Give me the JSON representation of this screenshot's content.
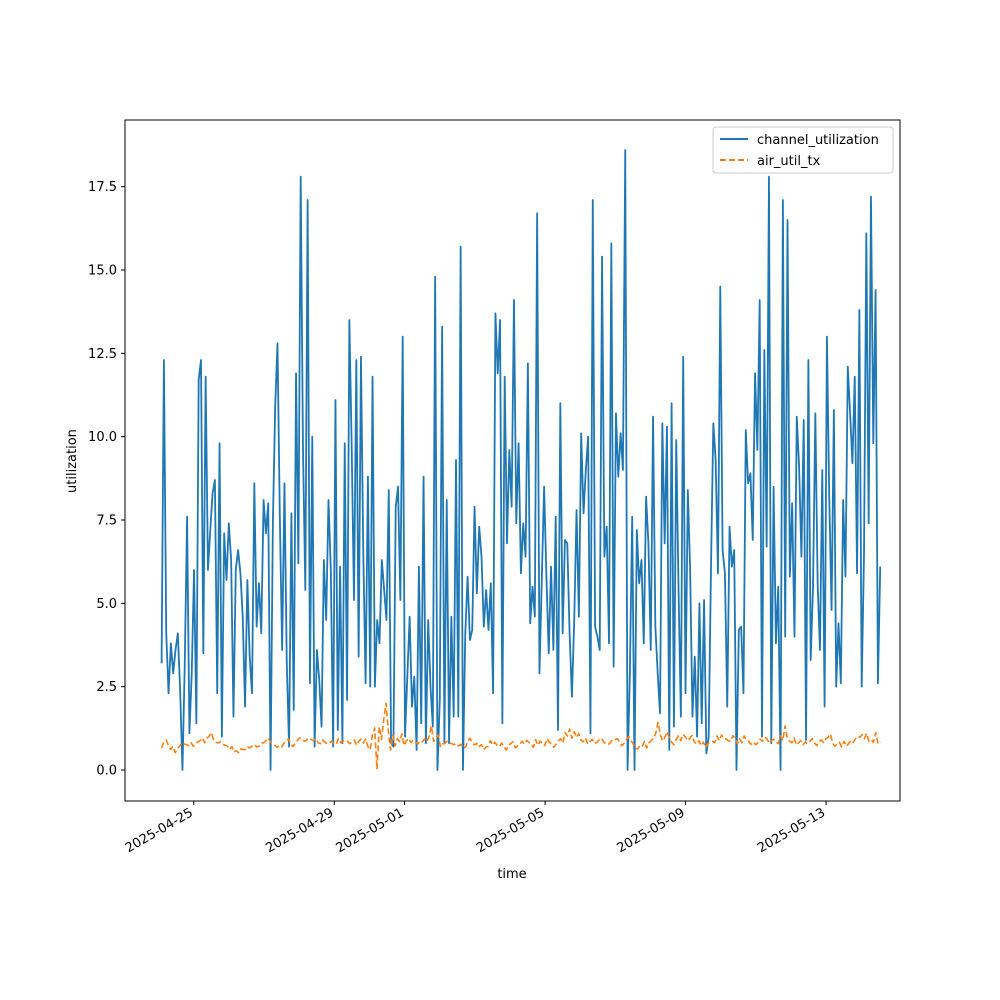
{
  "chart_data": {
    "type": "line",
    "title": "",
    "xlabel": "time",
    "ylabel": "utilization",
    "x_tick_labels": [
      "2025-04-25",
      "2025-04-29",
      "2025-05-01",
      "2025-05-05",
      "2025-05-09",
      "2025-05-13"
    ],
    "x_tick_dates": [
      "2025-04-25",
      "2025-04-29",
      "2025-05-01",
      "2025-05-05",
      "2025-05-09",
      "2025-05-13"
    ],
    "xlim": [
      "2025-04-23 01:00",
      "2025-05-15 02:30"
    ],
    "y_ticks": [
      0.0,
      2.5,
      5.0,
      7.5,
      10.0,
      12.5,
      15.0,
      17.5
    ],
    "y_tick_labels": [
      "0.0",
      "2.5",
      "5.0",
      "7.5",
      "10.0",
      "12.5",
      "15.0",
      "17.5"
    ],
    "ylim": [
      -0.93,
      19.5
    ],
    "grid": false,
    "legend_position": "top-right",
    "series": [
      {
        "name": "channel_utilization",
        "color": "#1f77b4",
        "style": "solid",
        "x_start": "2025-04-24 02:00",
        "x_end": "2025-05-14 13:00",
        "values": [
          3.2,
          12.3,
          4.1,
          2.3,
          3.8,
          2.9,
          3.6,
          4.1,
          2.4,
          0.0,
          3.2,
          7.6,
          1.1,
          2.9,
          6.0,
          1.4,
          11.7,
          12.3,
          3.5,
          11.8,
          6.0,
          7.2,
          8.3,
          8.7,
          2.3,
          9.8,
          1.0,
          7.1,
          5.7,
          7.4,
          6.3,
          1.6,
          6.0,
          6.6,
          5.9,
          4.6,
          1.9,
          5.7,
          3.4,
          2.3,
          8.6,
          4.3,
          5.6,
          4.1,
          8.1,
          7.1,
          8.0,
          0.0,
          7.4,
          10.9,
          12.8,
          7.6,
          3.6,
          8.6,
          3.2,
          0.7,
          7.7,
          1.8,
          11.9,
          6.2,
          17.8,
          9.6,
          5.4,
          17.1,
          2.6,
          10.0,
          0.7,
          3.6,
          2.7,
          1.3,
          6.3,
          4.5,
          8.1,
          6.0,
          0.7,
          11.1,
          1.2,
          6.1,
          0.8,
          9.8,
          2.1,
          13.5,
          9.7,
          5.1,
          12.3,
          3.4,
          12.4,
          6.5,
          2.6,
          8.8,
          2.5,
          11.8,
          2.5,
          4.5,
          3.8,
          6.3,
          5.4,
          4.5,
          8.4,
          0.8,
          0.7,
          7.9,
          8.5,
          5.1,
          13.0,
          1.0,
          2.8,
          4.6,
          1.9,
          2.8,
          0.6,
          6.1,
          1.4,
          8.8,
          0.8,
          4.5,
          2.5,
          1.3,
          14.8,
          0.0,
          2.1,
          13.3,
          0.8,
          8.1,
          0.8,
          4.6,
          1.6,
          9.3,
          1.6,
          15.7,
          0.0,
          4.1,
          5.8,
          3.9,
          4.2,
          7.9,
          5.3,
          7.3,
          6.4,
          4.3,
          5.4,
          4.2,
          5.6,
          2.3,
          13.7,
          11.9,
          13.5,
          1.4,
          11.8,
          6.8,
          9.6,
          7.9,
          14.1,
          7.4,
          9.8,
          5.9,
          7.4,
          6.4,
          12.2,
          4.4,
          5.5,
          4.6,
          16.7,
          2.9,
          5.7,
          8.5,
          5.8,
          3.5,
          6.1,
          3.6,
          7.6,
          1.2,
          11.0,
          4.1,
          6.9,
          6.8,
          4.1,
          2.2,
          4.5,
          7.8,
          4.6,
          10.1,
          7.7,
          9.0,
          10.0,
          1.1,
          17.1,
          4.3,
          4.0,
          3.6,
          15.4,
          6.4,
          7.3,
          3.8,
          15.8,
          3.1,
          10.7,
          8.8,
          10.1,
          9.0,
          18.6,
          0.0,
          2.9,
          7.6,
          0.0,
          7.2,
          5.6,
          6.3,
          3.8,
          8.2,
          6.8,
          3.6,
          10.6,
          4.3,
          2.9,
          1.7,
          10.4,
          6.8,
          10.3,
          0.6,
          11.0,
          1.3,
          9.9,
          5.4,
          1.6,
          12.4,
          2.3,
          8.4,
          6.0,
          1.6,
          3.4,
          1.0,
          5.0,
          1.4,
          5.1,
          0.5,
          1.0,
          6.1,
          10.4,
          9.3,
          5.9,
          14.5,
          6.6,
          5.9,
          1.9,
          7.3,
          6.1,
          6.6,
          0.0,
          4.2,
          4.3,
          2.3,
          10.2,
          8.6,
          8.9,
          6.9,
          11.9,
          9.6,
          14.1,
          1.0,
          12.6,
          6.7,
          17.8,
          0.8,
          8.5,
          3.8,
          5.5,
          0.0,
          17.1,
          4.0,
          16.5,
          5.8,
          8.0,
          4.0,
          10.6,
          9.1,
          6.4,
          10.5,
          0.9,
          12.3,
          3.3,
          5.5,
          10.7,
          5.6,
          3.6,
          9.0,
          1.9,
          13.0,
          8.2,
          4.8,
          10.8,
          2.5,
          4.4,
          2.6,
          8.1,
          5.8,
          12.1,
          10.7,
          9.2,
          11.8,
          5.9,
          13.8,
          2.5,
          6.5,
          16.1,
          7.4,
          17.2,
          9.8,
          14.4,
          2.6,
          6.1
        ]
      },
      {
        "name": "air_util_tx",
        "color": "#ff7f0e",
        "style": "dashed",
        "x_start": "2025-04-24 02:00",
        "x_end": "2025-05-14 13:00",
        "values": [
          0.66,
          0.84,
          0.9,
          0.74,
          0.61,
          0.71,
          0.52,
          0.64,
          0.72,
          0.82,
          0.78,
          0.76,
          0.73,
          0.82,
          0.71,
          0.78,
          0.85,
          0.88,
          0.96,
          0.82,
          0.95,
          1.02,
          1.12,
          0.89,
          0.83,
          0.81,
          0.85,
          0.78,
          0.74,
          0.71,
          0.62,
          0.7,
          0.54,
          0.58,
          0.52,
          0.64,
          0.61,
          0.62,
          0.69,
          0.66,
          0.73,
          0.76,
          0.69,
          0.71,
          0.8,
          0.82,
          0.88,
          0.96,
          0.84,
          0.78,
          0.74,
          0.68,
          0.73,
          0.69,
          0.81,
          0.88,
          0.94,
          0.76,
          0.7,
          0.82,
          0.89,
          0.97,
          0.93,
          0.86,
          0.9,
          0.96,
          0.91,
          0.88,
          0.94,
          0.82,
          0.79,
          0.9,
          0.84,
          0.78,
          0.81,
          0.86,
          0.8,
          0.76,
          0.95,
          0.82,
          0.87,
          0.9,
          0.86,
          0.79,
          0.84,
          0.9,
          0.74,
          0.86,
          0.93,
          0.81,
          0.93,
          0.7,
          0.61,
          1.05,
          1.26,
          0.02,
          1.3,
          0.92,
          1.52,
          2.0,
          1.2,
          0.6,
          1.05,
          0.72,
          0.94,
          0.85,
          1.08,
          0.73,
          0.88,
          0.95,
          0.82,
          0.9,
          0.84,
          0.78,
          0.87,
          0.84,
          0.93,
          0.85,
          1.01,
          1.32,
          0.86,
          0.97,
          1.05,
          0.7,
          0.78,
          0.8,
          0.86,
          0.81,
          0.79,
          0.76,
          0.8,
          0.72,
          0.77,
          0.67,
          0.68,
          0.84,
          0.95,
          0.82,
          0.75,
          0.8,
          0.69,
          0.76,
          0.61,
          0.68,
          0.71,
          0.88,
          0.75,
          0.83,
          0.74,
          0.7,
          0.81,
          0.71,
          0.6,
          0.75,
          0.79,
          0.85,
          0.67,
          0.72,
          0.77,
          0.86,
          0.78,
          0.89,
          0.83,
          0.76,
          0.68,
          0.91,
          0.74,
          0.87,
          0.79,
          0.73,
          0.94,
          0.84,
          0.78,
          0.68,
          0.77,
          0.87,
          0.94,
          0.81,
          1.12,
          1.02,
          1.23,
          0.95,
          1.15,
          0.98,
          1.09,
          0.9,
          0.84,
          0.96,
          0.78,
          0.86,
          0.92,
          0.79,
          0.83,
          0.9,
          0.95,
          0.84,
          0.78,
          0.76,
          0.83,
          0.92,
          0.91,
          0.94,
          0.85,
          0.73,
          0.8,
          0.91,
          1.0,
          0.88,
          0.79,
          0.65,
          0.63,
          0.74,
          0.71,
          0.86,
          0.66,
          0.82,
          0.88,
          0.96,
          1.1,
          1.43,
          1.06,
          0.87,
          0.98,
          1.15,
          0.94,
          0.83,
          0.76,
          0.92,
          1.02,
          0.88,
          1.07,
          0.99,
          0.88,
          0.95,
          1.04,
          0.84,
          0.78,
          0.88,
          0.73,
          0.84,
          0.67,
          0.79,
          0.85,
          0.86,
          0.82,
          1.02,
          0.88,
          1.05,
          0.94,
          0.93,
          0.88,
          0.86,
          1.03,
          0.95,
          0.79,
          0.94,
          0.82,
          1.02,
          0.9,
          0.86,
          0.77,
          0.84,
          0.76,
          0.81,
          0.93,
          0.86,
          0.98,
          0.94,
          0.8,
          0.88,
          0.92,
          0.84,
          0.79,
          1.02,
          0.88,
          1.32,
          0.96,
          0.87,
          0.82,
          0.96,
          0.75,
          0.82,
          0.88,
          0.76,
          0.84,
          0.79,
          0.86,
          0.94,
          0.81,
          0.73,
          0.86,
          0.9,
          0.82,
          0.94,
          0.98,
          1.08,
          0.81,
          0.71,
          0.78,
          0.83,
          0.69,
          0.86,
          0.71,
          0.79,
          0.88,
          0.82,
          0.93,
          1.0,
          0.98,
          1.06,
          0.94,
          1.1,
          0.86,
          0.91,
          0.83,
          1.12,
          0.78,
          0.84
        ]
      }
    ]
  }
}
